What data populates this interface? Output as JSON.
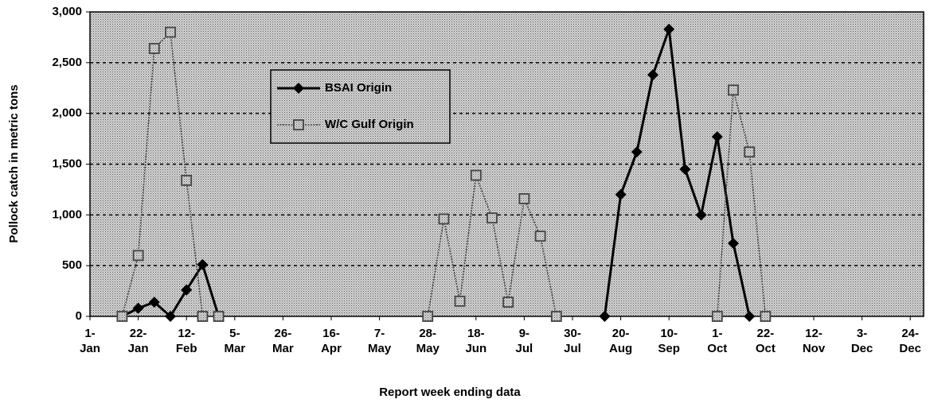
{
  "chart_data": {
    "type": "line",
    "xlabel": "Report week ending data",
    "ylabel": "Pollock catch in metric tons",
    "categories": [
      "1-Jan",
      null,
      null,
      "22-Jan",
      null,
      null,
      "12-Feb",
      null,
      null,
      "5-Mar",
      null,
      null,
      "26-Mar",
      null,
      null,
      "16-Apr",
      null,
      null,
      "7-May",
      null,
      null,
      "28-May",
      null,
      null,
      "18-Jun",
      null,
      null,
      "9-Jul",
      null,
      null,
      "30-Jul",
      null,
      null,
      "20-Aug",
      null,
      null,
      "10-Sep",
      null,
      null,
      "1-Oct",
      null,
      null,
      "22-Oct",
      null,
      null,
      "12-Nov",
      null,
      null,
      "3-Dec",
      null,
      null,
      "24-Dec"
    ],
    "series": [
      {
        "name": "BSAI Origin",
        "color": "#000000",
        "values": [
          null,
          null,
          0,
          80,
          140,
          0,
          260,
          510,
          0,
          null,
          null,
          null,
          null,
          null,
          null,
          null,
          null,
          null,
          null,
          null,
          null,
          null,
          null,
          null,
          null,
          null,
          null,
          null,
          null,
          null,
          null,
          null,
          0,
          1200,
          1620,
          2380,
          2830,
          1450,
          1000,
          1770,
          720,
          0,
          null,
          null,
          null,
          null,
          null,
          null,
          null,
          null,
          null,
          null
        ]
      },
      {
        "name": "W/C Gulf Origin",
        "color": "#444444",
        "values": [
          null,
          null,
          0,
          600,
          2640,
          2800,
          1340,
          0,
          0,
          null,
          null,
          null,
          null,
          null,
          null,
          null,
          null,
          null,
          null,
          null,
          null,
          0,
          960,
          150,
          1390,
          970,
          140,
          1160,
          790,
          0,
          null,
          null,
          null,
          null,
          null,
          null,
          null,
          null,
          null,
          0,
          2230,
          1620,
          0,
          null,
          null,
          null,
          null,
          null,
          null,
          null,
          null,
          null
        ]
      }
    ],
    "ylim": [
      0,
      3000
    ],
    "yticks": [
      0,
      {
        "value": 500,
        "label": "500"
      },
      {
        "value": 1000,
        "label": "1,000"
      },
      {
        "value": 1500,
        "label": "1,500"
      },
      {
        "value": 2000,
        "label": "2,000"
      },
      {
        "value": 2500,
        "label": "2,500"
      },
      {
        "value": 3000,
        "label": "3,000"
      }
    ],
    "grid": true,
    "legend": "upper-center"
  }
}
